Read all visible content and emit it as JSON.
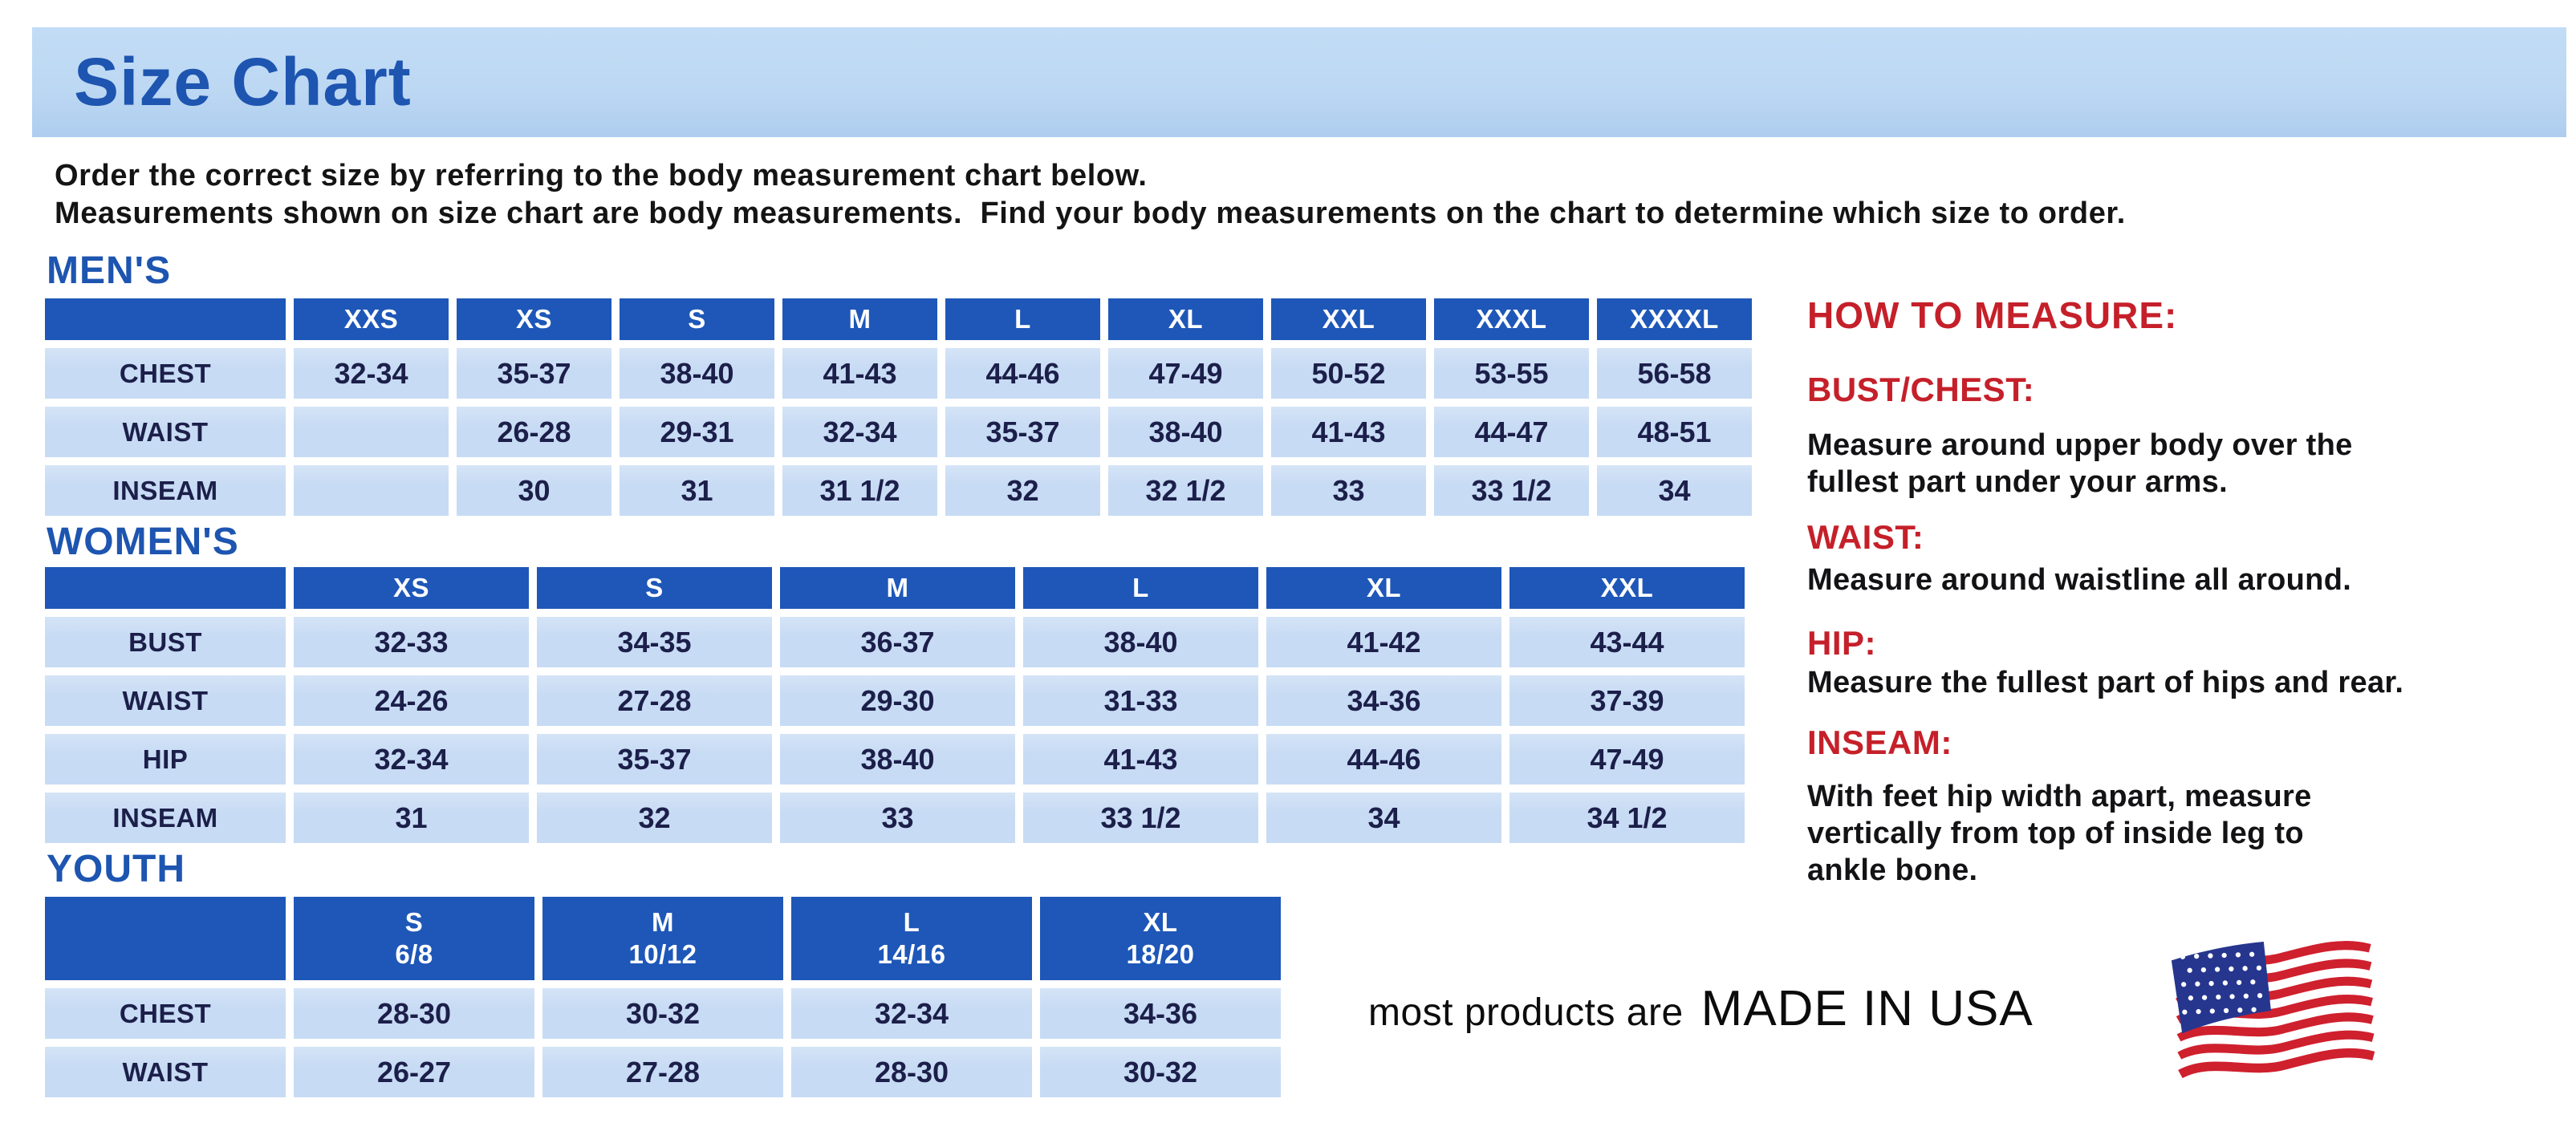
{
  "banner": {
    "title": "Size Chart"
  },
  "intro": {
    "line1": "Order the correct size by referring to the body measurement chart below.",
    "line2": "Measurements shown on size chart are body measurements.  Find your body measurements on the chart to determine which size to order."
  },
  "tables": [
    {
      "heading": "MEN'S",
      "columns": [
        "",
        "XXS",
        "XS",
        "S",
        "M",
        "L",
        "XL",
        "XXL",
        "XXXL",
        "XXXXL"
      ],
      "rows": [
        {
          "label": "CHEST",
          "values": [
            "32-34",
            "35-37",
            "38-40",
            "41-43",
            "44-46",
            "47-49",
            "50-52",
            "53-55",
            "56-58"
          ]
        },
        {
          "label": "WAIST",
          "values": [
            "",
            "26-28",
            "29-31",
            "32-34",
            "35-37",
            "38-40",
            "41-43",
            "44-47",
            "48-51"
          ]
        },
        {
          "label": "INSEAM",
          "values": [
            "",
            "30",
            "31",
            "31 1/2",
            "32",
            "32 1/2",
            "33",
            "33 1/2",
            "34"
          ]
        }
      ]
    },
    {
      "heading": "WOMEN'S",
      "columns": [
        "",
        "XS",
        "S",
        "M",
        "L",
        "XL",
        "XXL"
      ],
      "rows": [
        {
          "label": "BUST",
          "values": [
            "32-33",
            "34-35",
            "36-37",
            "38-40",
            "41-42",
            "43-44"
          ]
        },
        {
          "label": "WAIST",
          "values": [
            "24-26",
            "27-28",
            "29-30",
            "31-33",
            "34-36",
            "37-39"
          ]
        },
        {
          "label": "HIP",
          "values": [
            "32-34",
            "35-37",
            "38-40",
            "41-43",
            "44-46",
            "47-49"
          ]
        },
        {
          "label": "INSEAM",
          "values": [
            "31",
            "32",
            "33",
            "33 1/2",
            "34",
            "34 1/2"
          ]
        }
      ]
    },
    {
      "heading": "YOUTH",
      "columns": [
        "",
        "S\n6/8",
        "M\n10/12",
        "L\n14/16",
        "XL\n18/20"
      ],
      "rows": [
        {
          "label": "CHEST",
          "values": [
            "28-30",
            "30-32",
            "32-34",
            "34-36"
          ]
        },
        {
          "label": "WAIST",
          "values": [
            "26-27",
            "27-28",
            "28-30",
            "30-32"
          ]
        }
      ]
    }
  ],
  "how_to_measure": {
    "title": "HOW TO MEASURE:",
    "items": [
      {
        "term": "BUST/CHEST:",
        "description": "Measure around upper body over the\nfullest part under your arms."
      },
      {
        "term": "WAIST:",
        "description": "Measure around waistline all around."
      },
      {
        "term": "HIP:",
        "description": "Measure the fullest part of hips and rear."
      },
      {
        "term": "INSEAM:",
        "description": "With feet hip width apart, measure\nvertically from top of inside leg to\nankle bone."
      }
    ]
  },
  "footer": {
    "prefix": "most products are",
    "emphasis": "MADE IN USA",
    "flag_icon": "us-flag-icon"
  },
  "colors": {
    "heading_blue": "#1d55b0",
    "table_header_blue": "#1e57b8",
    "cell_blue": "#c7dbf4",
    "banner_blue": "#bdd8f3",
    "accent_red": "#c5202a",
    "text_navy": "#1c1f4a",
    "flag_red": "#cf202e",
    "flag_canton_blue": "#26368e"
  }
}
